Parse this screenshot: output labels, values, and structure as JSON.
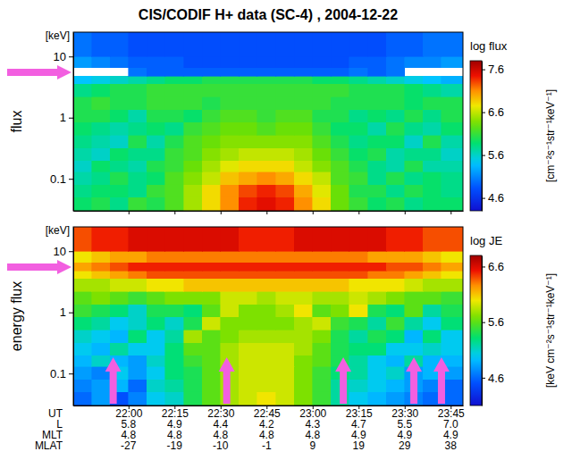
{
  "chart_data": [
    {
      "type": "heatmap",
      "title": "CIS/CODIF H+ data (SC-4) , 2004-12-22",
      "ylabel": "flux",
      "yunit": "[keV]",
      "log": "y",
      "tick_labels": "y",
      "xlim": [
        1302,
        1429
      ],
      "ylim": [
        0.03,
        25
      ],
      "xticks": [
        1320,
        1335,
        1350,
        1365,
        1380,
        1395,
        1410,
        1425
      ],
      "yticks": [
        0.1,
        1,
        10
      ],
      "x_bins": [
        1302,
        1308,
        1314,
        1320,
        1326,
        1332,
        1338,
        1344,
        1350,
        1356,
        1362,
        1368,
        1374,
        1380,
        1386,
        1392,
        1398,
        1404,
        1410,
        1416,
        1422,
        1429
      ],
      "y_bins": [
        0.03,
        0.05,
        0.08,
        0.13,
        0.2,
        0.32,
        0.52,
        0.84,
        1.35,
        2.2,
        3.6,
        4.8,
        6.6,
        10,
        25
      ],
      "z": [
        [
          5.9,
          6.0,
          5.8,
          6.1,
          6.0,
          6.2,
          6.5,
          6.8,
          7.1,
          7.4,
          7.5,
          7.4,
          7.1,
          6.8,
          6.3,
          6.1,
          5.9,
          6.0,
          5.8,
          5.9,
          5.9
        ],
        [
          5.8,
          5.9,
          5.9,
          5.8,
          6.1,
          6.2,
          6.5,
          6.8,
          7.1,
          7.3,
          7.4,
          7.3,
          7.0,
          6.7,
          6.3,
          6.0,
          6.0,
          5.8,
          6.0,
          5.9,
          5.8
        ],
        [
          5.7,
          5.8,
          6.0,
          5.8,
          5.9,
          6.2,
          6.4,
          6.6,
          6.9,
          7.0,
          7.1,
          7.0,
          6.8,
          6.6,
          6.2,
          6.1,
          5.8,
          6.0,
          5.8,
          5.9,
          5.8
        ],
        [
          5.6,
          5.9,
          5.8,
          5.7,
          6.0,
          6.1,
          6.3,
          6.5,
          6.7,
          6.8,
          6.8,
          6.8,
          6.6,
          6.4,
          6.2,
          6.0,
          5.8,
          5.7,
          6.0,
          5.7,
          5.7
        ],
        [
          5.7,
          5.6,
          5.9,
          5.8,
          5.8,
          6.1,
          6.2,
          6.4,
          6.5,
          6.6,
          6.6,
          6.6,
          6.5,
          6.3,
          6.1,
          5.9,
          6.0,
          5.7,
          5.8,
          5.8,
          5.6
        ],
        [
          5.8,
          5.7,
          5.6,
          6.0,
          5.7,
          6.0,
          6.2,
          6.3,
          6.4,
          6.4,
          6.4,
          6.4,
          6.4,
          6.2,
          6.0,
          5.8,
          5.9,
          5.9,
          5.6,
          6.0,
          5.7
        ],
        [
          5.9,
          5.8,
          5.7,
          5.8,
          5.9,
          5.8,
          6.1,
          6.2,
          6.3,
          6.3,
          6.2,
          6.3,
          6.3,
          6.1,
          5.9,
          5.9,
          5.7,
          6.0,
          5.8,
          5.7,
          5.9
        ],
        [
          6.0,
          6.0,
          5.9,
          5.7,
          6.0,
          6.0,
          5.9,
          6.1,
          6.2,
          6.2,
          6.1,
          6.2,
          6.2,
          6.0,
          6.0,
          5.8,
          5.9,
          5.8,
          6.0,
          5.8,
          6.0
        ],
        [
          6.0,
          6.1,
          6.0,
          6.0,
          6.1,
          6.1,
          6.1,
          6.0,
          6.1,
          6.1,
          6.1,
          6.1,
          6.1,
          6.1,
          6.0,
          6.0,
          6.0,
          6.0,
          5.9,
          6.0,
          6.0
        ],
        [
          5.8,
          5.9,
          6.0,
          6.0,
          6.1,
          6.1,
          6.1,
          6.1,
          6.1,
          6.1,
          6.1,
          6.1,
          6.1,
          6.1,
          6.1,
          6.0,
          6.0,
          6.0,
          5.9,
          5.8,
          5.7
        ],
        [
          5.4,
          5.5,
          5.6,
          5.7,
          5.8,
          5.9,
          5.9,
          6.0,
          6.0,
          6.0,
          6.0,
          6.0,
          6.0,
          5.9,
          5.9,
          5.8,
          5.7,
          5.6,
          5.5,
          5.4,
          5.3
        ],
        [
          null,
          null,
          null,
          5.0,
          4.9,
          4.9,
          4.9,
          4.9,
          4.9,
          4.9,
          4.9,
          4.9,
          4.9,
          4.9,
          4.9,
          5.0,
          4.9,
          5.0,
          null,
          null,
          null
        ],
        [
          5.2,
          5.1,
          5.0,
          4.9,
          4.9,
          4.9,
          4.8,
          4.8,
          4.8,
          4.8,
          4.8,
          4.8,
          4.8,
          4.8,
          4.8,
          4.9,
          4.9,
          5.0,
          5.1,
          5.1,
          5.2
        ],
        [
          5.0,
          4.9,
          4.9,
          4.8,
          4.8,
          4.8,
          4.8,
          4.8,
          4.8,
          4.8,
          4.8,
          4.8,
          4.8,
          4.8,
          4.8,
          4.8,
          4.8,
          4.9,
          4.9,
          5.0,
          5.0
        ]
      ],
      "colorbar": {
        "title": "log flux",
        "unit": "[cm⁻²s⁻¹str⁻¹keV⁻¹]",
        "range": [
          4.3,
          7.8
        ],
        "ticks": [
          4.6,
          5.6,
          6.6,
          7.6
        ]
      },
      "arrows": {
        "y": [
          5.5
        ]
      }
    },
    {
      "type": "heatmap",
      "ylabel": "energy flux",
      "yunit": "[keV]",
      "log": "y",
      "xlabel": "UT",
      "xlim": [
        1302,
        1429
      ],
      "ylim": [
        0.03,
        25
      ],
      "xticks": [
        {
          "value": 1320,
          "label": "22:00"
        },
        {
          "value": 1335,
          "label": "22:15"
        },
        {
          "value": 1350,
          "label": "22:30"
        },
        {
          "value": 1365,
          "label": "22:45"
        },
        {
          "value": 1380,
          "label": "23:00"
        },
        {
          "value": 1395,
          "label": "23:15"
        },
        {
          "value": 1410,
          "label": "23:30"
        },
        {
          "value": 1425,
          "label": "23:45"
        }
      ],
      "yticks": [
        0.1,
        1,
        10
      ],
      "x_label_rows": [
        {
          "name": "L",
          "values": [
            5.8,
            4.9,
            4.4,
            4.2,
            4.3,
            4.7,
            5.5,
            {
              "value": 7,
              "label": "7.0"
            }
          ]
        },
        {
          "name": "MLT",
          "values": [
            4.8,
            4.8,
            4.8,
            4.8,
            4.8,
            4.9,
            4.9,
            4.9
          ]
        },
        {
          "name": "MLAT",
          "values": [
            -27,
            -19,
            -10,
            -1,
            9,
            19,
            29,
            38
          ]
        }
      ],
      "x_bins": [
        1302,
        1308,
        1314,
        1320,
        1326,
        1332,
        1338,
        1344,
        1350,
        1356,
        1362,
        1368,
        1374,
        1380,
        1386,
        1392,
        1398,
        1404,
        1410,
        1416,
        1422,
        1429
      ],
      "y_bins": [
        0.03,
        0.05,
        0.08,
        0.13,
        0.2,
        0.32,
        0.52,
        0.84,
        1.35,
        2.2,
        3.6,
        4.8,
        6.6,
        10,
        25
      ],
      "z": [
        [
          4.6,
          4.8,
          4.5,
          4.7,
          5.0,
          5.1,
          5.4,
          5.6,
          5.8,
          5.9,
          6.0,
          5.9,
          5.7,
          5.5,
          5.2,
          5.0,
          4.9,
          4.8,
          4.7,
          4.6,
          4.6
        ],
        [
          4.7,
          4.8,
          4.9,
          4.6,
          5.1,
          5.2,
          5.4,
          5.6,
          5.8,
          5.9,
          5.9,
          5.9,
          5.7,
          5.5,
          5.2,
          5.1,
          5.0,
          4.9,
          4.8,
          4.7,
          4.6
        ],
        [
          4.8,
          4.7,
          5.0,
          4.8,
          5.0,
          5.3,
          5.4,
          5.6,
          5.8,
          5.9,
          5.9,
          5.9,
          5.7,
          5.5,
          5.3,
          5.2,
          5.0,
          5.1,
          4.8,
          4.9,
          4.8
        ],
        [
          4.9,
          5.1,
          4.9,
          4.8,
          5.1,
          5.3,
          5.5,
          5.6,
          5.8,
          5.9,
          5.9,
          5.9,
          5.7,
          5.6,
          5.4,
          5.2,
          5.0,
          4.9,
          5.2,
          4.9,
          4.9
        ],
        [
          5.0,
          4.9,
          5.2,
          5.0,
          5.0,
          5.3,
          5.6,
          5.6,
          5.8,
          5.9,
          5.9,
          5.9,
          5.8,
          5.6,
          5.4,
          5.3,
          5.3,
          5.0,
          5.0,
          5.1,
          5.0
        ],
        [
          5.1,
          5.0,
          4.9,
          5.3,
          5.0,
          5.2,
          5.8,
          5.6,
          5.7,
          5.8,
          5.8,
          5.8,
          5.8,
          5.7,
          5.4,
          5.2,
          5.4,
          5.3,
          4.9,
          5.3,
          5.0
        ],
        [
          5.3,
          5.2,
          5.0,
          5.1,
          5.3,
          5.1,
          5.4,
          5.9,
          5.7,
          5.7,
          5.7,
          5.7,
          5.8,
          5.9,
          5.5,
          5.4,
          5.2,
          5.5,
          5.2,
          5.0,
          5.3
        ],
        [
          5.5,
          5.4,
          5.3,
          5.1,
          5.4,
          5.4,
          5.3,
          5.6,
          5.9,
          5.7,
          5.7,
          5.8,
          6.0,
          5.6,
          5.7,
          6.0,
          5.4,
          5.3,
          5.6,
          5.2,
          5.4
        ],
        [
          5.6,
          5.7,
          5.6,
          5.5,
          5.6,
          5.7,
          5.7,
          5.7,
          5.9,
          5.9,
          5.8,
          5.9,
          5.9,
          5.8,
          5.8,
          5.9,
          5.8,
          5.7,
          5.6,
          5.6,
          5.5
        ],
        [
          5.8,
          5.8,
          5.9,
          5.9,
          6.0,
          6.0,
          6.1,
          6.1,
          6.1,
          6.1,
          6.1,
          6.1,
          6.1,
          6.1,
          6.1,
          6.0,
          6.0,
          6.0,
          5.9,
          5.8,
          5.8
        ],
        [
          6.0,
          6.1,
          6.2,
          6.3,
          6.4,
          6.4,
          6.4,
          6.4,
          6.4,
          6.4,
          6.4,
          6.4,
          6.4,
          6.4,
          6.4,
          6.4,
          6.3,
          6.3,
          6.2,
          6.1,
          6.0
        ],
        [
          6.2,
          6.3,
          6.4,
          6.5,
          6.5,
          6.5,
          6.5,
          6.5,
          6.5,
          6.5,
          6.5,
          6.5,
          6.5,
          6.5,
          6.5,
          6.5,
          6.5,
          6.4,
          6.4,
          6.3,
          6.2
        ],
        [
          6.0,
          6.1,
          6.2,
          6.2,
          6.3,
          6.3,
          6.3,
          6.3,
          6.3,
          6.3,
          6.3,
          6.3,
          6.3,
          6.3,
          6.3,
          6.3,
          6.2,
          6.2,
          6.2,
          6.1,
          6.0
        ],
        [
          6.4,
          6.5,
          6.5,
          6.6,
          6.6,
          6.6,
          6.6,
          6.6,
          6.6,
          6.5,
          6.5,
          6.5,
          6.6,
          6.6,
          6.6,
          6.6,
          6.6,
          6.5,
          6.5,
          6.4,
          6.4
        ]
      ],
      "colorbar": {
        "title": "log JE",
        "unit": "[keV cm⁻²s⁻¹str⁻¹keV⁻¹]",
        "range": [
          4.1,
          6.8
        ],
        "ticks": [
          4.6,
          5.6,
          6.6
        ]
      },
      "arrows": {
        "y": [
          5.5
        ],
        "x": [
          1315,
          1352,
          1390,
          1413,
          1422
        ]
      }
    }
  ]
}
